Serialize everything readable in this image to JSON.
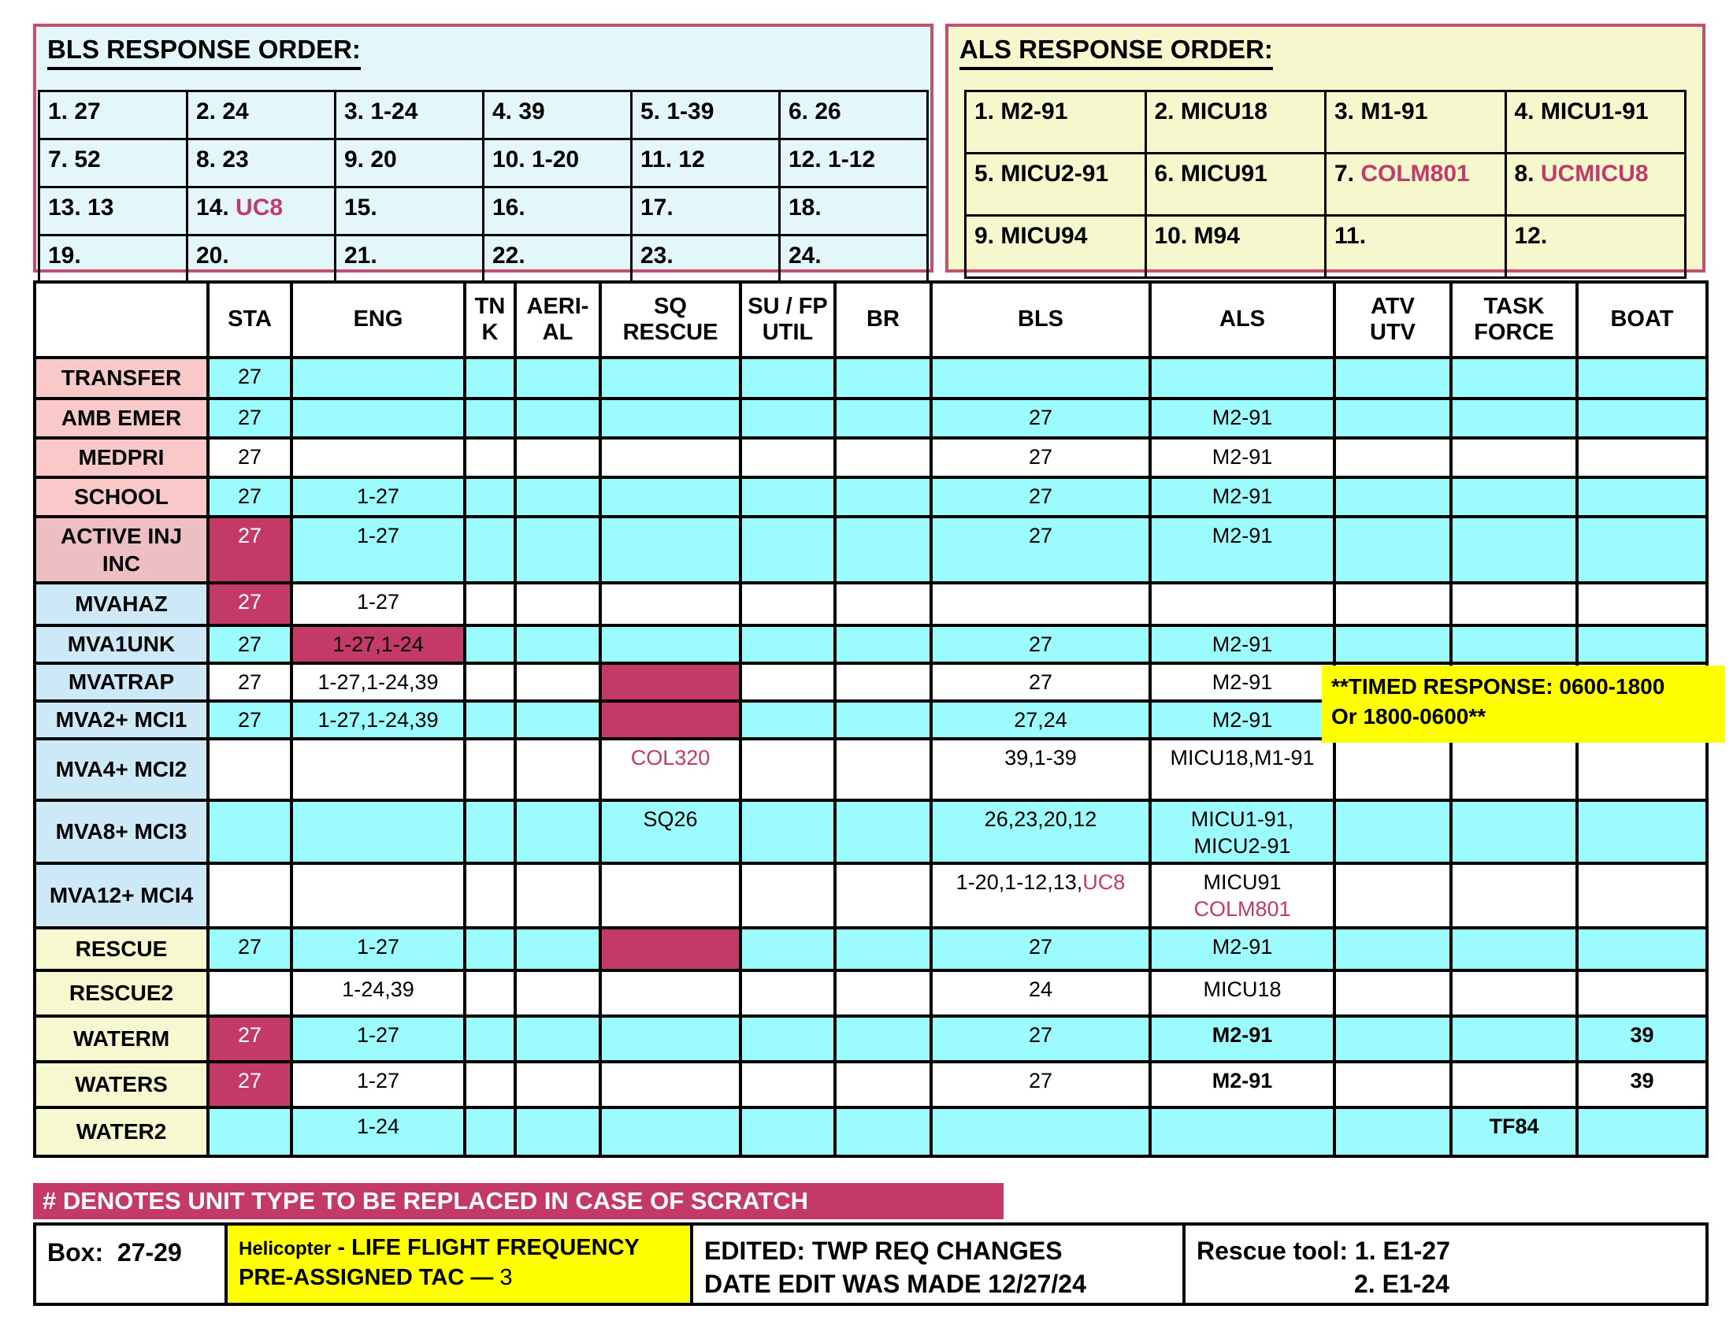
{
  "palette": {
    "cyan": "#9CFBFD",
    "white": "#FFFFFF",
    "crimson": "#C33A68",
    "pink": "#F9C9C9",
    "pinkDark": "#EDBFC2",
    "blue": "#CDE9F7",
    "yellowLbl": "#F6F9D0",
    "noteYellow": "#FFFF00",
    "boxBorderPink": "#C4506F",
    "blsBoxBg": "#E3F7FA",
    "alsBoxBg": "#F5F8CC"
  },
  "bls_box": {
    "title": "BLS RESPONSE ORDER:",
    "cells": [
      {
        "n": "1.",
        "v": "27"
      },
      {
        "n": "2.",
        "v": "24"
      },
      {
        "n": "3.",
        "v": "1-24"
      },
      {
        "n": "4.",
        "v": "39"
      },
      {
        "n": "5.",
        "v": "1-39"
      },
      {
        "n": "6.",
        "v": "26"
      },
      {
        "n": "7.",
        "v": "52"
      },
      {
        "n": "8.",
        "v": "23"
      },
      {
        "n": "9.",
        "v": "20"
      },
      {
        "n": "10.",
        "v": "1-20"
      },
      {
        "n": "11.",
        "v": "12"
      },
      {
        "n": "12.",
        "v": "1-12"
      },
      {
        "n": "13.",
        "v": "13"
      },
      {
        "n": "14.",
        "v": "UC8",
        "red": true
      },
      {
        "n": "15.",
        "v": ""
      },
      {
        "n": "16.",
        "v": ""
      },
      {
        "n": "17.",
        "v": ""
      },
      {
        "n": "18.",
        "v": ""
      },
      {
        "n": "19.",
        "v": ""
      },
      {
        "n": "20.",
        "v": ""
      },
      {
        "n": "21.",
        "v": ""
      },
      {
        "n": "22.",
        "v": ""
      },
      {
        "n": "23.",
        "v": ""
      },
      {
        "n": "24.",
        "v": ""
      }
    ]
  },
  "als_box": {
    "title": "ALS RESPONSE ORDER:",
    "cells": [
      {
        "n": "1.",
        "v": "M2-91"
      },
      {
        "n": "2.",
        "v": "MICU18"
      },
      {
        "n": "3.",
        "v": "M1-91"
      },
      {
        "n": "4.",
        "v": "MICU1-91"
      },
      {
        "n": "5.",
        "v": "MICU2-91"
      },
      {
        "n": "6.",
        "v": "MICU91"
      },
      {
        "n": "7.",
        "v": "COLM801",
        "red": true
      },
      {
        "n": "8.",
        "v": "UCMICU8",
        "red": true
      },
      {
        "n": "9.",
        "v": "MICU94"
      },
      {
        "n": "10.",
        "v": "M94"
      },
      {
        "n": "11.",
        "v": ""
      },
      {
        "n": "12.",
        "v": ""
      }
    ]
  },
  "matrix": {
    "columns": [
      "",
      "STA",
      "ENG",
      "TN\nK",
      "AERI-\nAL",
      "SQ\nRESCUE",
      "SU / FP\nUTIL",
      "BR",
      "BLS",
      "ALS",
      "ATV\nUTV",
      "TASK\nFORCE",
      "BOAT"
    ],
    "rows": [
      {
        "label": "TRANSFER",
        "label_bg": "pink",
        "bg": "cyan",
        "cells": {
          "sta": {
            "t": "27"
          }
        }
      },
      {
        "label": "AMB EMER",
        "label_bg": "pink",
        "bg": "cyan",
        "cells": {
          "sta": {
            "t": "27"
          },
          "bls": {
            "t": "27"
          },
          "als": {
            "t": "M2-91"
          }
        }
      },
      {
        "label": "MEDPRI",
        "label_bg": "pink",
        "bg": "white",
        "cells": {
          "sta": {
            "t": "27"
          },
          "bls": {
            "t": "27"
          },
          "als": {
            "t": "M2-91"
          }
        }
      },
      {
        "label": "SCHOOL",
        "label_bg": "pink",
        "bg": "cyan",
        "cells": {
          "sta": {
            "t": "27"
          },
          "eng": {
            "t": "1-27"
          },
          "bls": {
            "t": "27"
          },
          "als": {
            "t": "M2-91"
          }
        }
      },
      {
        "label": "ACTIVE INJ\nINC",
        "label_bg": "pinkDark",
        "bg": "cyan",
        "cells": {
          "sta": {
            "t": "27",
            "bg": "crimson",
            "color": "white"
          },
          "eng": {
            "t": "1-27"
          },
          "bls": {
            "t": "27"
          },
          "als": {
            "t": "M2-91"
          }
        }
      },
      {
        "label": "MVAHAZ",
        "label_bg": "blue",
        "bg": "white",
        "cells": {
          "sta": {
            "t": "27",
            "bg": "crimson",
            "color": "white"
          },
          "eng": {
            "t": "1-27"
          }
        }
      },
      {
        "label": "MVA1UNK",
        "label_bg": "blue",
        "bg": "cyan",
        "cells": {
          "sta": {
            "t": "27"
          },
          "eng": {
            "t": "1-27,1-24",
            "bg": "crimson"
          },
          "bls": {
            "t": "27"
          },
          "als": {
            "t": "M2-91"
          }
        }
      },
      {
        "label": "MVATRAP",
        "label_bg": "blue",
        "bg": "white",
        "cells": {
          "sta": {
            "t": "27"
          },
          "eng": {
            "t": "1-27,1-24,39"
          },
          "sq": {
            "t": "",
            "bg": "crimson"
          },
          "bls": {
            "t": "27"
          },
          "als": {
            "t": "M2-91"
          }
        }
      },
      {
        "label": "MVA2+ MCI1",
        "label_bg": "blue",
        "bg": "cyan",
        "cells": {
          "sta": {
            "t": "27"
          },
          "eng": {
            "t": "1-27,1-24,39"
          },
          "sq": {
            "t": "",
            "bg": "crimson"
          },
          "bls": {
            "t": "27,24"
          },
          "als": {
            "t": "M2-91"
          }
        }
      },
      {
        "label": "MVA4+ MCI2",
        "label_bg": "blue",
        "bg": "white",
        "cells": {
          "sq": {
            "t": "COL320",
            "color": "crimson"
          },
          "bls": {
            "t": "39,1-39"
          },
          "als": {
            "t": "MICU18,M1-91"
          }
        }
      },
      {
        "label": "MVA8+ MCI3",
        "label_bg": "blue",
        "bg": "cyan",
        "cells": {
          "sq": {
            "t": "SQ26"
          },
          "bls": {
            "t": "26,23,20,12"
          },
          "als": {
            "t": "MICU1-91,\nMICU2-91"
          }
        }
      },
      {
        "label": "MVA12+ MCI4",
        "label_bg": "blue",
        "bg": "white",
        "cells": {
          "bls": {
            "parts": [
              [
                "1-20,1-12,13,",
                "k"
              ],
              [
                "UC8",
                "r"
              ]
            ]
          },
          "als": {
            "parts": [
              [
                "MICU91\n",
                "k"
              ],
              [
                "COLM801",
                "r"
              ]
            ]
          }
        }
      },
      {
        "label": "RESCUE",
        "label_bg": "yellowLbl",
        "bg": "cyan",
        "cells": {
          "sta": {
            "t": "27"
          },
          "eng": {
            "t": "1-27"
          },
          "sq": {
            "t": "",
            "bg": "crimson"
          },
          "bls": {
            "t": "27"
          },
          "als": {
            "t": "M2-91"
          }
        }
      },
      {
        "label": "RESCUE2",
        "label_bg": "yellowLbl",
        "bg": "white",
        "cells": {
          "eng": {
            "t": "1-24,39"
          },
          "bls": {
            "t": "24"
          },
          "als": {
            "t": "MICU18"
          }
        }
      },
      {
        "label": "WATERM",
        "label_bg": "yellowLbl",
        "bg": "cyan",
        "cells": {
          "sta": {
            "t": "27",
            "bg": "crimson",
            "color": "white"
          },
          "eng": {
            "t": "1-27"
          },
          "bls": {
            "t": "27"
          },
          "als": {
            "t": "M2-91",
            "bold": true
          },
          "boat": {
            "t": "39",
            "bold": true
          }
        }
      },
      {
        "label": "WATERS",
        "label_bg": "yellowLbl",
        "bg": "white",
        "cells": {
          "sta": {
            "t": "27",
            "bg": "crimson",
            "color": "white"
          },
          "eng": {
            "t": "1-27"
          },
          "bls": {
            "t": "27"
          },
          "als": {
            "t": "M2-91",
            "bold": true
          },
          "boat": {
            "t": "39",
            "bold": true
          }
        }
      },
      {
        "label": "WATER2",
        "label_bg": "yellowLbl",
        "bg": "cyan",
        "cells": {
          "eng": {
            "t": "1-24"
          },
          "tf": {
            "t": "TF84",
            "bold": true
          }
        }
      }
    ]
  },
  "timed_note": {
    "line1": "**TIMED RESPONSE: 0600-1800",
    "line2": "Or 1800-0600**"
  },
  "banner": "# DENOTES UNIT  TYPE TO BE REPLACED IN CASE OF SCRATCH",
  "footer": {
    "box": {
      "label": "Box:",
      "value": "27-29"
    },
    "helicopter": {
      "small": "Helicopter",
      "line1_bold": " - LIFE FLIGHT FREQUENCY",
      "line2_bold": "PRE-ASSIGNED TAC — ",
      "line2_value": "3"
    },
    "edited": {
      "line1": "EDITED:  TWP REQ CHANGES",
      "line2": "DATE EDIT WAS MADE 12/27/24"
    },
    "rescue_tool": {
      "line1": "Rescue tool: 1.  E1-27",
      "line2": "2.  E1-24"
    }
  }
}
